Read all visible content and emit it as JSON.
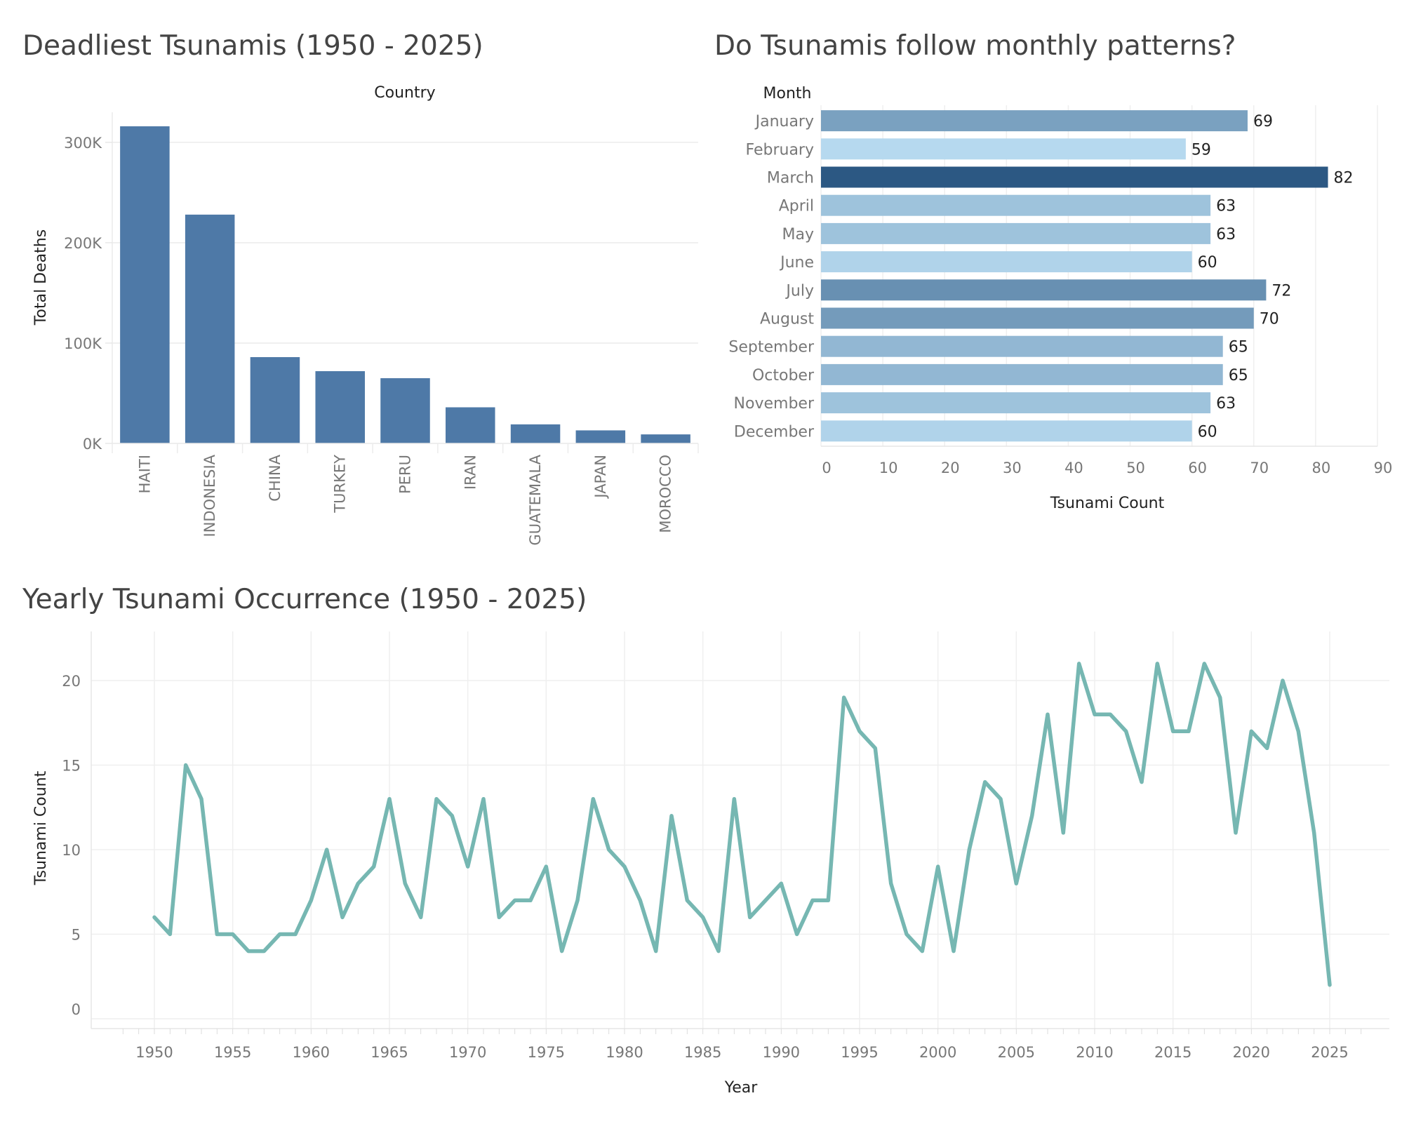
{
  "chart_data": [
    {
      "type": "bar",
      "title": "Deadliest Tsunamis (1950 - 2025)",
      "xlabel": "Country",
      "ylabel": "Total Deaths",
      "categories": [
        "HAITI",
        "INDONESIA",
        "CHINA",
        "TURKEY",
        "PERU",
        "IRAN",
        "GUATEMALA",
        "JAPAN",
        "MOROCCO"
      ],
      "values": [
        316000,
        228000,
        86000,
        72000,
        65000,
        36000,
        19000,
        13000,
        9000
      ],
      "yticks": [
        0,
        100000,
        200000,
        300000
      ],
      "ytick_labels": [
        "0K",
        "100K",
        "200K",
        "300K"
      ],
      "ylim": [
        0,
        330000
      ],
      "grid": true,
      "color": "#4e79a7"
    },
    {
      "type": "bar",
      "orientation": "horizontal",
      "title": "Do Tsunamis follow monthly patterns?",
      "xlabel": "Tsunami Count",
      "ylabel": "Month",
      "categories": [
        "January",
        "February",
        "March",
        "April",
        "May",
        "June",
        "July",
        "August",
        "September",
        "October",
        "November",
        "December"
      ],
      "values": [
        69,
        59,
        82,
        63,
        63,
        60,
        72,
        70,
        65,
        65,
        63,
        60
      ],
      "data_labels": [
        "69",
        "59",
        "82",
        "63",
        "63",
        "60",
        "72",
        "70",
        "65",
        "65",
        "63",
        "60"
      ],
      "xticks": [
        0,
        10,
        20,
        30,
        40,
        50,
        60,
        70,
        80,
        90
      ],
      "xlim": [
        0,
        90
      ],
      "grid": true,
      "color_scale": [
        "#b6d9ef",
        "#2c5883"
      ]
    },
    {
      "type": "line",
      "title": "Yearly Tsunami Occurrence (1950 - 2025)",
      "xlabel": "Year",
      "ylabel": "Tsunami Count",
      "x": [
        1950,
        1951,
        1952,
        1953,
        1954,
        1955,
        1956,
        1957,
        1958,
        1959,
        1960,
        1961,
        1962,
        1963,
        1964,
        1965,
        1966,
        1967,
        1968,
        1969,
        1970,
        1971,
        1972,
        1973,
        1974,
        1975,
        1976,
        1977,
        1978,
        1979,
        1980,
        1981,
        1982,
        1983,
        1984,
        1985,
        1986,
        1987,
        1988,
        1989,
        1990,
        1991,
        1992,
        1993,
        1994,
        1995,
        1996,
        1997,
        1998,
        1999,
        2000,
        2001,
        2002,
        2003,
        2004,
        2005,
        2006,
        2007,
        2008,
        2009,
        2010,
        2011,
        2012,
        2013,
        2014,
        2015,
        2016,
        2017,
        2018,
        2019,
        2020,
        2021,
        2022,
        2023,
        2024,
        2025
      ],
      "values": [
        6,
        5,
        15,
        13,
        5,
        5,
        4,
        4,
        5,
        5,
        7,
        10,
        6,
        8,
        9,
        13,
        8,
        6,
        13,
        12,
        9,
        13,
        6,
        7,
        7,
        9,
        4,
        7,
        13,
        10,
        9,
        7,
        4,
        12,
        7,
        6,
        4,
        13,
        6,
        7,
        8,
        5,
        7,
        7,
        19,
        17,
        16,
        8,
        5,
        4,
        9,
        4,
        10,
        14,
        13,
        8,
        12,
        18,
        11,
        21,
        18,
        18,
        17,
        14,
        21,
        17,
        17,
        21,
        19,
        11,
        17,
        16,
        20,
        17,
        11,
        2
      ],
      "xticks": [
        1950,
        1955,
        1960,
        1965,
        1970,
        1975,
        1980,
        1985,
        1990,
        1995,
        2000,
        2005,
        2010,
        2015,
        2020,
        2025
      ],
      "yticks": [
        0,
        5,
        10,
        15,
        20
      ],
      "xlim": [
        1946,
        2029
      ],
      "ylim": [
        0,
        23
      ],
      "grid": true,
      "color": "#76b7b2"
    }
  ]
}
